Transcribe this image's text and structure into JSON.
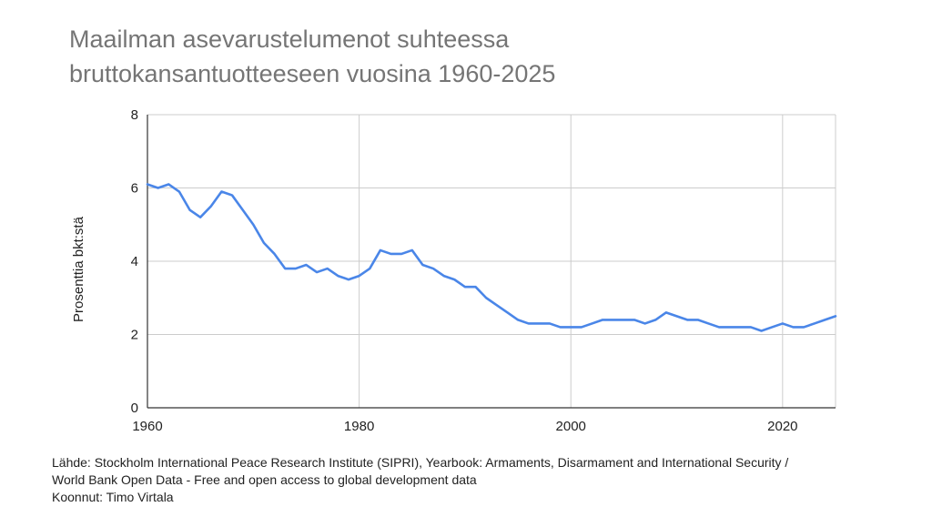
{
  "chart_data": {
    "type": "line",
    "title": [
      "Maailman asevarustelumenot suhteessa",
      "bruttokansantuotteeseen vuosina 1960-2025"
    ],
    "xlabel": "",
    "ylabel": "Prosenttia bkt:stä",
    "xlim": [
      1960,
      2025
    ],
    "ylim": [
      0,
      8
    ],
    "x_ticks": [
      1960,
      1980,
      2000,
      2020
    ],
    "y_ticks": [
      0,
      2,
      4,
      6,
      8
    ],
    "grid": true,
    "legend": "none",
    "series": [
      {
        "color": "#4a86e8",
        "x": [
          1960,
          1961,
          1962,
          1963,
          1964,
          1965,
          1966,
          1967,
          1968,
          1969,
          1970,
          1971,
          1972,
          1973,
          1974,
          1975,
          1976,
          1977,
          1978,
          1979,
          1980,
          1981,
          1982,
          1983,
          1984,
          1985,
          1986,
          1987,
          1988,
          1989,
          1990,
          1991,
          1992,
          1993,
          1994,
          1995,
          1996,
          1997,
          1998,
          1999,
          2000,
          2001,
          2002,
          2003,
          2004,
          2005,
          2006,
          2007,
          2008,
          2009,
          2010,
          2011,
          2012,
          2013,
          2014,
          2015,
          2016,
          2017,
          2018,
          2019,
          2020,
          2021,
          2022,
          2023,
          2024,
          2025
        ],
        "values": [
          6.1,
          6.0,
          6.1,
          5.9,
          5.4,
          5.2,
          5.5,
          5.9,
          5.8,
          5.4,
          5.0,
          4.5,
          4.2,
          3.8,
          3.8,
          3.9,
          3.7,
          3.8,
          3.6,
          3.5,
          3.6,
          3.8,
          4.3,
          4.2,
          4.2,
          4.3,
          3.9,
          3.8,
          3.6,
          3.5,
          3.3,
          3.3,
          3.0,
          2.8,
          2.6,
          2.4,
          2.3,
          2.3,
          2.3,
          2.2,
          2.2,
          2.2,
          2.3,
          2.4,
          2.4,
          2.4,
          2.4,
          2.3,
          2.4,
          2.6,
          2.5,
          2.4,
          2.4,
          2.3,
          2.2,
          2.2,
          2.2,
          2.2,
          2.1,
          2.2,
          2.3,
          2.2,
          2.2,
          2.3,
          2.4,
          2.5
        ]
      }
    ]
  },
  "source": {
    "line1": "Lähde: Stockholm International Peace Research Institute (SIPRI), Yearbook: Armaments, Disarmament and International Security /",
    "line2": "World Bank Open Data - Free and open access to global development data",
    "line3": "Koonnut: Timo Virtala"
  }
}
